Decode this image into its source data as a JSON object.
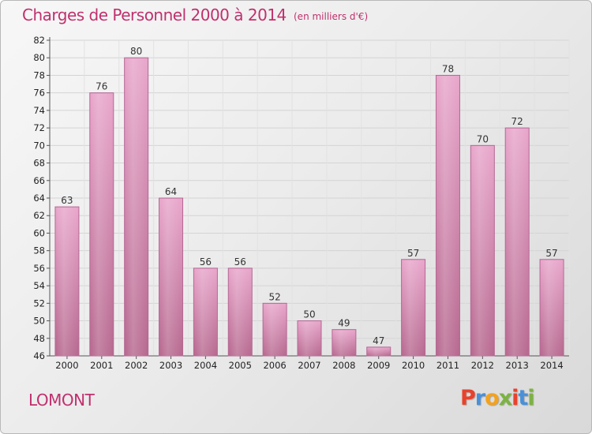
{
  "header": {
    "title": "Charges de Personnel 2000 à 2014",
    "subtitle": "(en milliers d'€)"
  },
  "footer": {
    "place": "LOMONT",
    "logo": "Proxiti",
    "logo_colors": [
      "#e8422c",
      "#4a90d9",
      "#f4a21c",
      "#7cb342",
      "#e8422c",
      "#4a90d9",
      "#7cb342"
    ]
  },
  "chart_data": {
    "type": "bar",
    "categories": [
      "2000",
      "2001",
      "2002",
      "2003",
      "2004",
      "2005",
      "2006",
      "2007",
      "2008",
      "2009",
      "2010",
      "2011",
      "2012",
      "2013",
      "2014"
    ],
    "values": [
      63,
      76,
      80,
      64,
      56,
      56,
      52,
      50,
      49,
      47,
      57,
      78,
      70,
      72,
      57
    ],
    "ylim": [
      46,
      82
    ],
    "yticks": [
      46,
      48,
      50,
      52,
      54,
      56,
      58,
      60,
      62,
      64,
      66,
      68,
      70,
      72,
      74,
      76,
      78,
      80,
      82
    ],
    "grid": true,
    "bar_color": "#d88bb5",
    "bar_edge_color": "#b46895"
  }
}
